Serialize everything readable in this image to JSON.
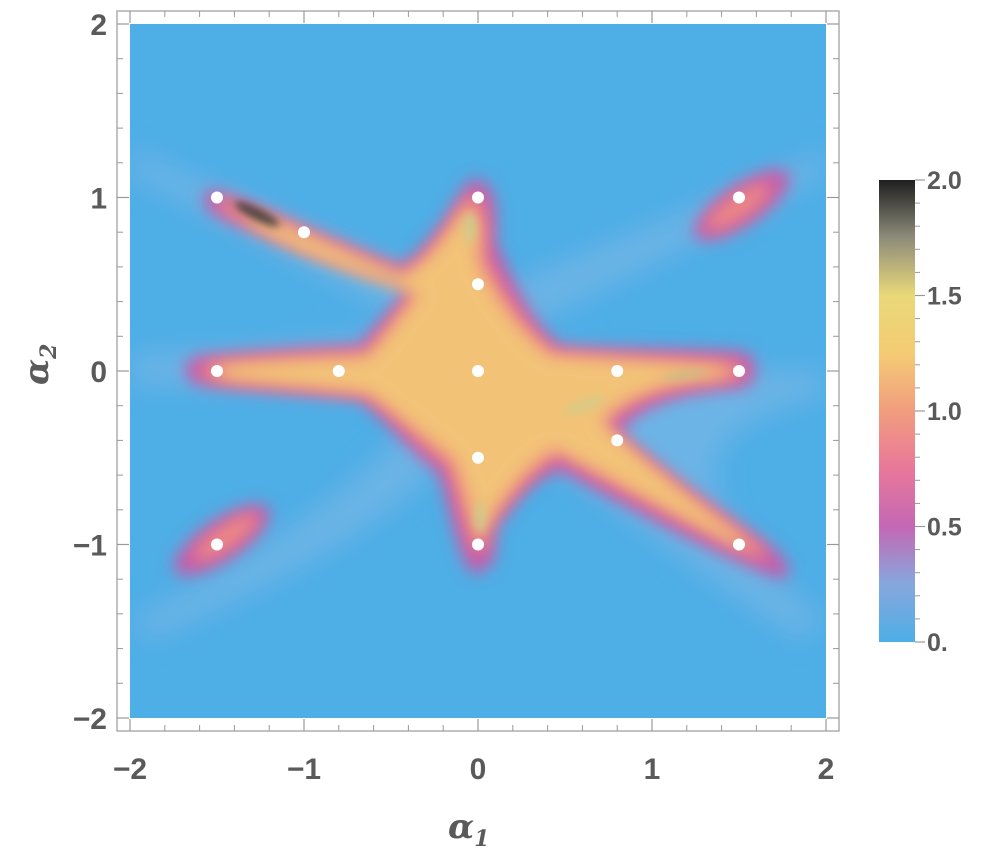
{
  "chart_data": {
    "type": "heatmap",
    "title": "",
    "xlabel": {
      "symbol": "α",
      "subscript": "1"
    },
    "ylabel": {
      "symbol": "α",
      "subscript": "2"
    },
    "xlim": [
      -2,
      2
    ],
    "ylim": [
      -2,
      2
    ],
    "x_ticks": [
      {
        "value": -2,
        "label": "−2"
      },
      {
        "value": -1,
        "label": "−1"
      },
      {
        "value": 0,
        "label": "0"
      },
      {
        "value": 1,
        "label": "1"
      },
      {
        "value": 2,
        "label": "2"
      }
    ],
    "y_ticks": [
      {
        "value": -2,
        "label": "−2"
      },
      {
        "value": -1,
        "label": "−1"
      },
      {
        "value": 0,
        "label": "0"
      },
      {
        "value": 1,
        "label": "1"
      },
      {
        "value": 2,
        "label": "2"
      }
    ],
    "colorbar": {
      "range": [
        0,
        2
      ],
      "ticks": [
        {
          "value": 0,
          "label": "0."
        },
        {
          "value": 0.5,
          "label": "0.5"
        },
        {
          "value": 1,
          "label": "1.0"
        },
        {
          "value": 1.5,
          "label": "1.5"
        },
        {
          "value": 2,
          "label": "2.0"
        }
      ],
      "colors": [
        {
          "value": 0.0,
          "color": "#4eaee6"
        },
        {
          "value": 0.25,
          "color": "#86a7dd"
        },
        {
          "value": 0.5,
          "color": "#c468b4"
        },
        {
          "value": 0.75,
          "color": "#e8789a"
        },
        {
          "value": 1.0,
          "color": "#f19d7e"
        },
        {
          "value": 1.25,
          "color": "#f4cb74"
        },
        {
          "value": 1.5,
          "color": "#e9d879"
        },
        {
          "value": 1.75,
          "color": "#8e8c7a"
        },
        {
          "value": 2.0,
          "color": "#1f1f1f"
        }
      ]
    },
    "points": [
      {
        "x": -1.5,
        "y": 1.0
      },
      {
        "x": -1.0,
        "y": 0.8
      },
      {
        "x": 0.0,
        "y": 1.0
      },
      {
        "x": 0.0,
        "y": 0.5
      },
      {
        "x": 1.5,
        "y": 1.0
      },
      {
        "x": -1.5,
        "y": 0.0
      },
      {
        "x": -0.8,
        "y": 0.0
      },
      {
        "x": 0.0,
        "y": 0.0
      },
      {
        "x": 0.8,
        "y": 0.0
      },
      {
        "x": 1.5,
        "y": 0.0
      },
      {
        "x": 0.8,
        "y": -0.4
      },
      {
        "x": 0.0,
        "y": -0.5
      },
      {
        "x": -1.5,
        "y": -1.0
      },
      {
        "x": 0.0,
        "y": -1.0
      },
      {
        "x": 1.5,
        "y": -1.0
      }
    ],
    "point_color": "#ffffff",
    "frame_color": "#999999",
    "grid": false
  }
}
